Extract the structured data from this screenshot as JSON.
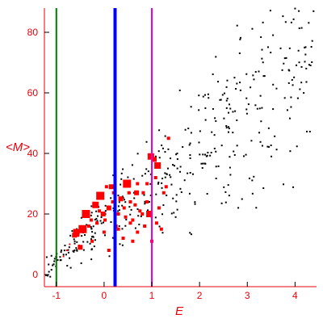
{
  "chart_data": {
    "type": "scatter",
    "title": "",
    "xlabel": "E",
    "ylabel": "<M>",
    "xlim": [
      -1.25,
      4.45
    ],
    "ylim": [
      -4,
      88
    ],
    "x_ticks": [
      -1,
      0,
      1,
      2,
      3,
      4
    ],
    "y_ticks": [
      0,
      20,
      40,
      60,
      80
    ],
    "grid": false,
    "legend": "none",
    "colors": {
      "axes": "#e8000b",
      "ticks": "#000000",
      "black_points": "#000000",
      "red_points": "#ff0000",
      "line_green": "#007a00",
      "line_blue": "#0000ff",
      "line_magenta": "#e000e0"
    },
    "vertical_lines": [
      {
        "x": -1.0,
        "color": "#007a00",
        "style": "thin"
      },
      {
        "x": 0.23,
        "color": "#0000ff",
        "style": "thick"
      },
      {
        "x": 1.0,
        "color": "#e000e0",
        "style": "thin"
      }
    ],
    "red_series": {
      "description_marker": "square",
      "points": [
        [
          -0.85,
          6,
          1
        ],
        [
          -0.78,
          8,
          1
        ],
        [
          -0.72,
          10,
          1
        ],
        [
          -0.62,
          13,
          3
        ],
        [
          -0.58,
          14,
          4
        ],
        [
          -0.55,
          13,
          2
        ],
        [
          -0.45,
          15,
          5
        ],
        [
          -0.38,
          20,
          5
        ],
        [
          -0.32,
          16,
          2
        ],
        [
          -0.27,
          18,
          2
        ],
        [
          -0.18,
          23,
          4
        ],
        [
          -0.15,
          17,
          2
        ],
        [
          -0.08,
          26,
          5
        ],
        [
          -0.02,
          20,
          3
        ],
        [
          0.02,
          18,
          2
        ],
        [
          0.1,
          22,
          3
        ],
        [
          0.15,
          29,
          3
        ],
        [
          0.18,
          24,
          2
        ],
        [
          0.2,
          27,
          2
        ],
        [
          0.25,
          16,
          2
        ],
        [
          0.3,
          20,
          2
        ],
        [
          0.35,
          25,
          3
        ],
        [
          0.42,
          22,
          2
        ],
        [
          0.48,
          30,
          5
        ],
        [
          0.52,
          27,
          2
        ],
        [
          0.55,
          24,
          2
        ],
        [
          0.6,
          18,
          2
        ],
        [
          0.65,
          23,
          2
        ],
        [
          0.68,
          27,
          3
        ],
        [
          0.7,
          30,
          2
        ],
        [
          0.75,
          21,
          2
        ],
        [
          0.8,
          20,
          2
        ],
        [
          0.82,
          27,
          2
        ],
        [
          0.9,
          24,
          2
        ],
        [
          0.95,
          20,
          4
        ],
        [
          0.98,
          39,
          4
        ],
        [
          1.05,
          38,
          3
        ],
        [
          1.08,
          32,
          2
        ],
        [
          1.12,
          36,
          4
        ],
        [
          1.15,
          22,
          2
        ],
        [
          1.25,
          27,
          2
        ],
        [
          1.35,
          45,
          2
        ],
        [
          -0.5,
          9,
          3
        ],
        [
          -0.25,
          11,
          2
        ],
        [
          0.0,
          14,
          2
        ],
        [
          0.3,
          15,
          2
        ],
        [
          0.55,
          17,
          2
        ],
        [
          0.7,
          14,
          2
        ],
        [
          0.85,
          16,
          2
        ],
        [
          1.0,
          11,
          2
        ],
        [
          1.1,
          17,
          2
        ],
        [
          1.2,
          15,
          2
        ],
        [
          0.4,
          12,
          2
        ],
        [
          -0.1,
          21,
          2
        ],
        [
          0.05,
          29,
          2
        ],
        [
          0.6,
          11,
          2
        ],
        [
          0.45,
          19,
          2
        ],
        [
          0.9,
          30,
          2
        ],
        [
          1.3,
          29,
          2
        ],
        [
          0.1,
          8,
          2
        ]
      ]
    },
    "black_series": {
      "description_marker": "small dot",
      "count": 420,
      "trend": "increasing, y ≈ 5 + 12.5*(x+1), spread widening with x",
      "x_range": [
        -1.25,
        4.45
      ],
      "y_range": [
        -4,
        88
      ]
    }
  }
}
